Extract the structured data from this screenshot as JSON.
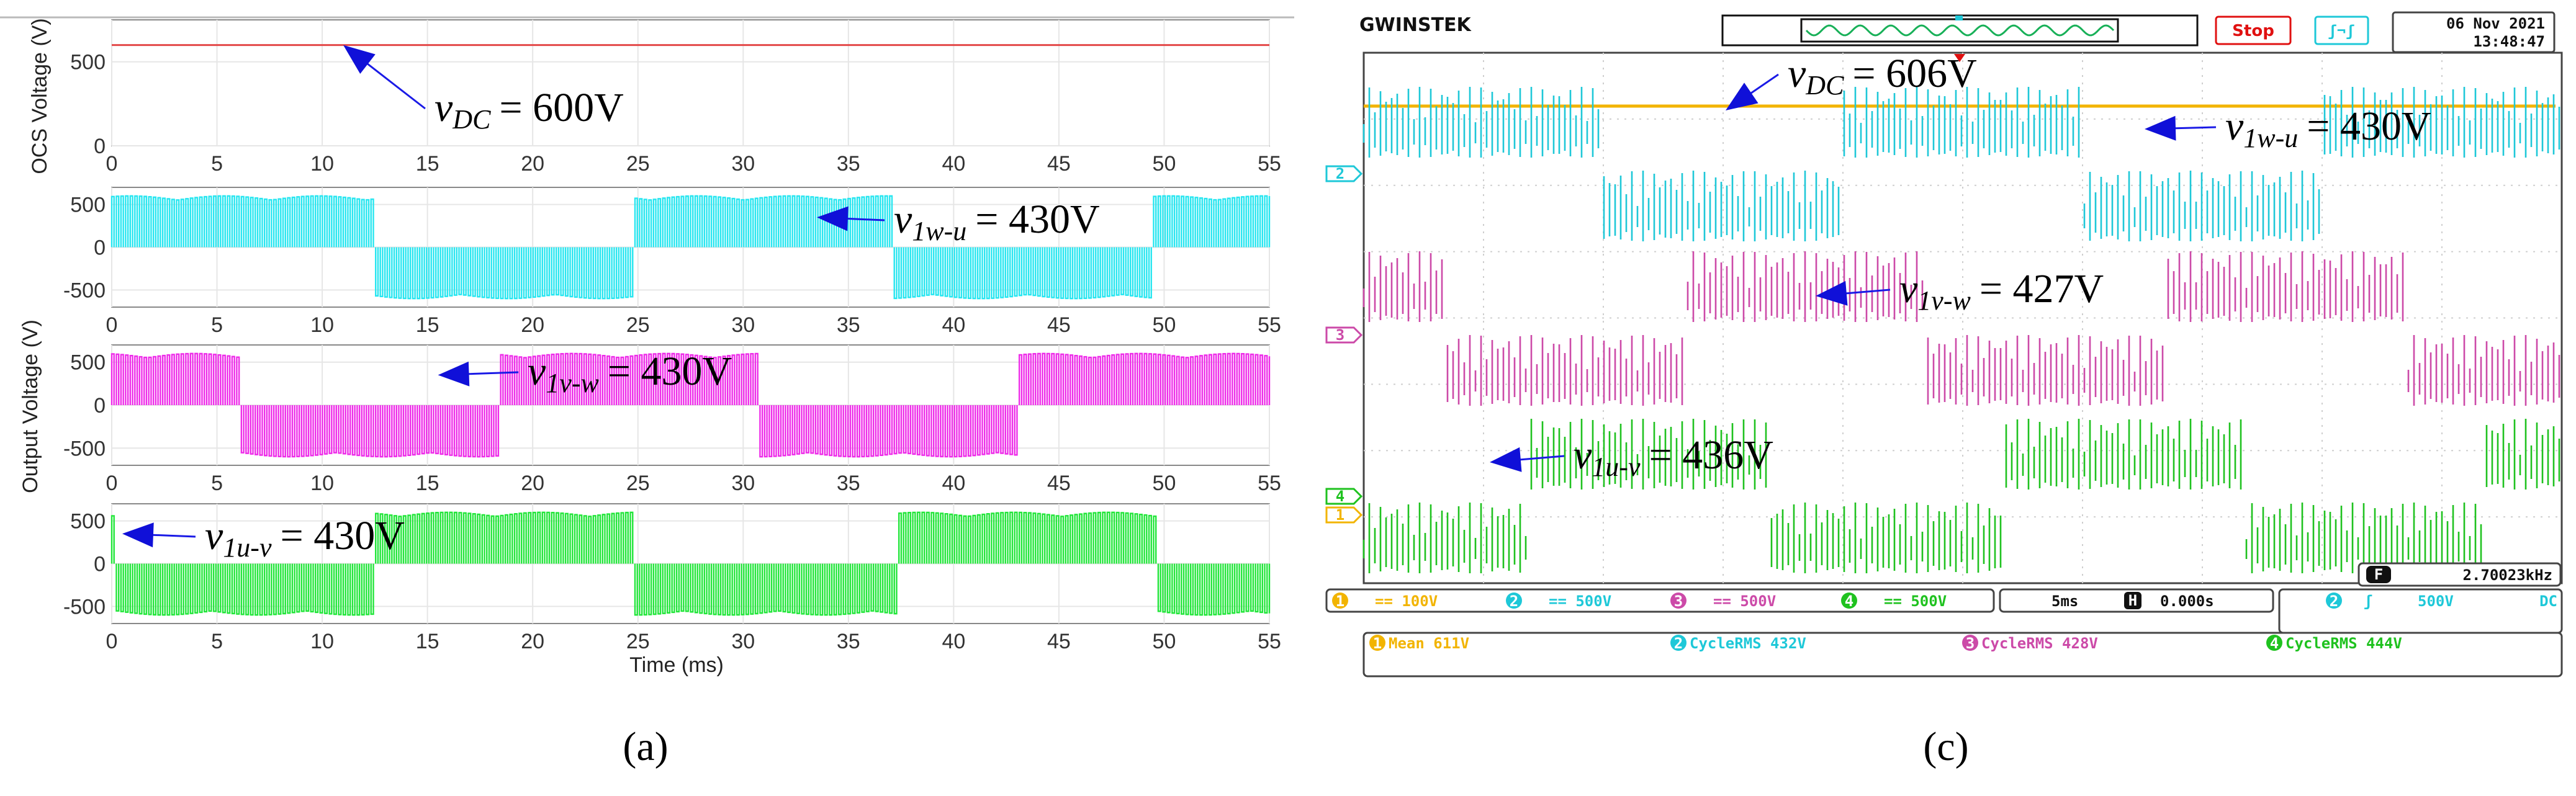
{
  "chart_data": [
    {
      "type": "line",
      "panel": "a",
      "caption": "(a)",
      "xlabel": "Time (ms)",
      "xlim": [
        0,
        55
      ],
      "x_ticks": [
        "0",
        "5",
        "10",
        "15",
        "20",
        "25",
        "30",
        "35",
        "40",
        "45",
        "50",
        "55"
      ],
      "y_label_top": "OCS Voltage (V)",
      "y_label_output": "Output Voltage (V)",
      "subplots": [
        {
          "name": "v_DC",
          "color": "#e34848",
          "y_ticks": [
            "0",
            "500"
          ],
          "ylim": [
            0,
            750
          ],
          "dc_level": 600,
          "annotation": {
            "var": "v",
            "sub": "DC",
            "value": "= 600V",
            "point": [
              11,
              600
            ]
          }
        },
        {
          "name": "v_1w-u",
          "color": "#27e6f0",
          "y_ticks": [
            "500",
            "0",
            "-500"
          ],
          "ylim": [
            -700,
            700
          ],
          "amplitude": 600,
          "phase_ms": 0,
          "annotation": {
            "var": "v",
            "sub": "1w-u",
            "value": "= 430V",
            "point": [
              33.5,
              350
            ]
          }
        },
        {
          "name": "v_1v-w",
          "color": "#ee2ce9",
          "y_ticks": [
            "500",
            "0",
            "-500"
          ],
          "ylim": [
            -700,
            700
          ],
          "amplitude": 600,
          "phase_ms": 6.3,
          "annotation": {
            "var": "v",
            "sub": "1v-w",
            "value": "= 430V",
            "point": [
              15.5,
              350
            ]
          }
        },
        {
          "name": "v_1u-v",
          "color": "#22e63a",
          "y_ticks": [
            "500",
            "0",
            "-500"
          ],
          "ylim": [
            -700,
            700
          ],
          "amplitude": 600,
          "phase_ms": -12.5,
          "annotation": {
            "var": "v",
            "sub": "1u-v",
            "value": "= 430V",
            "point": [
              0.5,
              350
            ]
          }
        }
      ]
    },
    {
      "type": "oscilloscope",
      "panel": "c",
      "caption": "(c)",
      "brand": "GWINSTEK",
      "status": "Stop",
      "trigger_symbol": "ʃ¬ʃ",
      "date": "06 Nov 2021",
      "time": "13:48:47",
      "channels": [
        {
          "id": "1",
          "color": "#f2b400",
          "marker": "1",
          "label": "v_DC",
          "value": "= 606V",
          "var": "v",
          "sub": "DC",
          "setting": "== 100V",
          "measure": "Mean 611V"
        },
        {
          "id": "2",
          "color": "#1ec8d8",
          "marker": "2",
          "label": "v_1w-u",
          "value": "= 430V",
          "var": "v",
          "sub": "1w-u",
          "setting": "== 500V",
          "measure": "CycleRMS 432V"
        },
        {
          "id": "3",
          "color": "#cc4aa8",
          "marker": "3",
          "label": "v_1v-w",
          "value": "= 427V",
          "var": "v",
          "sub": "1v-w",
          "setting": "== 500V",
          "measure": "CycleRMS 428V"
        },
        {
          "id": "4",
          "color": "#1fc21f",
          "marker": "4",
          "label": "v_1u-v",
          "value": "= 436V",
          "var": "v",
          "sub": "1u-v",
          "setting": "== 500V",
          "measure": "CycleRMS 444V"
        }
      ],
      "timebase": "5ms",
      "h_symbol": "H",
      "h_position": "0.000s",
      "trigger_channel": "2",
      "trigger_slope": "ʃ",
      "trigger_level": "500V",
      "trigger_coupling": "DC",
      "freq_symbol": "F",
      "frequency": "2.70023kHz"
    }
  ]
}
